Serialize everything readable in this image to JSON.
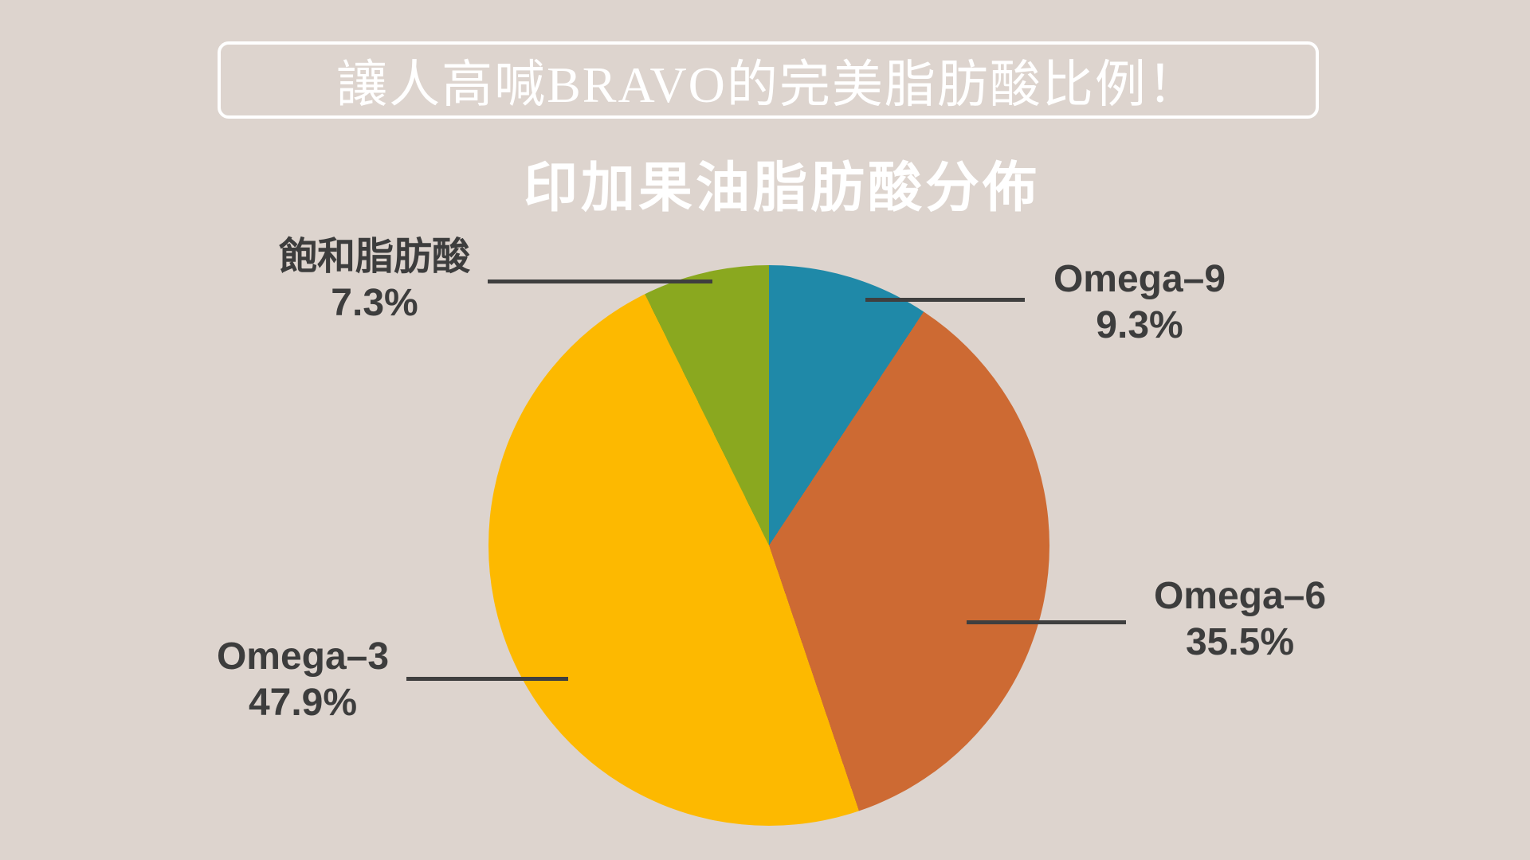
{
  "title": "讓人高喊BRAVO的完美脂肪酸比例！",
  "subtitle": "印加果油脂肪酸分佈",
  "colors": {
    "background": "#ddd4ce",
    "title_text": "#ffffff",
    "title_border": "#ffffff",
    "subtitle_text": "#ffffff",
    "label_text": "#3d3d3d",
    "leader_line": "#3f3f3f"
  },
  "chart_data": {
    "type": "pie",
    "title": "印加果油脂肪酸分佈",
    "start_angle_deg": 0,
    "direction": "clockwise",
    "legend_position": "none",
    "grid": false,
    "segments": [
      {
        "label": "Omega–9",
        "value": 9.3,
        "display_value": "9.3%",
        "color": "#1f89a8"
      },
      {
        "label": "Omega–6",
        "value": 35.5,
        "display_value": "35.5%",
        "color": "#cd6a33"
      },
      {
        "label": "Omega–3",
        "value": 47.9,
        "display_value": "47.9%",
        "color": "#fdb900"
      },
      {
        "label": "飽和脂肪酸",
        "value": 7.3,
        "display_value": "7.3%",
        "color": "#8aa81f"
      }
    ]
  }
}
